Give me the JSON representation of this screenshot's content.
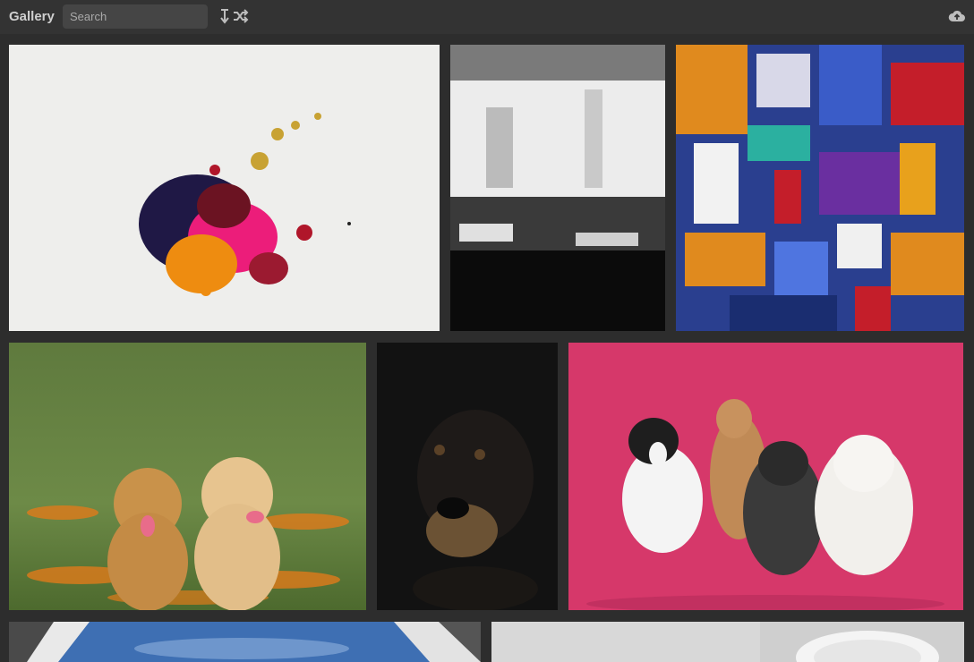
{
  "app": {
    "title": "Gallery"
  },
  "search": {
    "placeholder": "Search",
    "value": ""
  },
  "toolbar": {
    "sort_icon": "sort-descending-icon",
    "shuffle_icon": "shuffle-icon",
    "upload_icon": "cloud-upload-icon"
  },
  "gallery": {
    "items": [
      {
        "subject": "paint-splash"
      },
      {
        "subject": "black-white-abstract-painting"
      },
      {
        "subject": "colorful-abstract-painting"
      },
      {
        "subject": "golden-retriever-puppies"
      },
      {
        "subject": "dachshund-portrait"
      },
      {
        "subject": "four-dogs-pink-background"
      },
      {
        "subject": "building-sky"
      },
      {
        "subject": "white-interior"
      }
    ]
  },
  "colors": {
    "background": "#2d2d2d",
    "toolbar": "#333333",
    "search_field": "#454545",
    "title_text": "#cfcfcf",
    "icon": "#bdbdbd"
  }
}
